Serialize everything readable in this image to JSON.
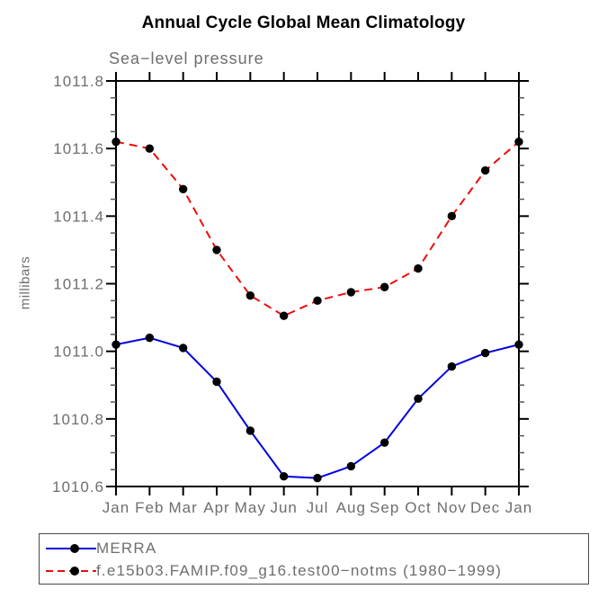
{
  "title": "Annual Cycle Global Mean Climatology",
  "subtitle": "Sea−level pressure",
  "ylabel": "millibars",
  "colors": {
    "merra_line": "#0202dd",
    "model_line": "#ee0c0c",
    "marker": "#000000",
    "axis": "#000000",
    "minor_tick": "#555555",
    "label_text": "#6e6e6e"
  },
  "legend": {
    "items": [
      {
        "label": "MERRA",
        "line_style": "solid",
        "color": "#0202dd"
      },
      {
        "label": "f.e15b03.FAMIP.f09_g16.test00−notms (1980−1999)",
        "line_style": "dashed",
        "color": "#ee0c0c"
      }
    ]
  },
  "chart_data": {
    "type": "line",
    "title": "Annual Cycle Global Mean Climatology",
    "subtitle": "Sea−level pressure",
    "ylabel": "millibars",
    "categories": [
      "Jan",
      "Feb",
      "Mar",
      "Apr",
      "May",
      "Jun",
      "Jul",
      "Aug",
      "Sep",
      "Oct",
      "Nov",
      "Dec",
      "Jan"
    ],
    "series": [
      {
        "name": "MERRA",
        "color": "#0202dd",
        "style": "solid",
        "values": [
          1011.02,
          1011.04,
          1011.01,
          1010.91,
          1010.765,
          1010.63,
          1010.625,
          1010.66,
          1010.73,
          1010.86,
          1010.955,
          1010.995,
          1011.02
        ]
      },
      {
        "name": "f.e15b03.FAMIP.f09_g16.test00−notms (1980−1999)",
        "color": "#ee0c0c",
        "style": "dashed",
        "values": [
          1011.62,
          1011.6,
          1011.48,
          1011.3,
          1011.165,
          1011.105,
          1011.15,
          1011.175,
          1011.19,
          1011.245,
          1011.4,
          1011.535,
          1011.62
        ]
      }
    ],
    "ylim": [
      1010.6,
      1011.8
    ],
    "yticks": [
      1011.8,
      1011.6,
      1011.4,
      1011.2,
      1011.0,
      1010.8,
      1010.6
    ],
    "ytick_labels": [
      "1011.8",
      "1011.6",
      "1011.4",
      "1011.2",
      "1011.0",
      "1010.8",
      "1010.6"
    ],
    "minor_tick_step": 0.05,
    "grid": false,
    "legend_position": "bottom-left",
    "marker": "filled-circle"
  }
}
